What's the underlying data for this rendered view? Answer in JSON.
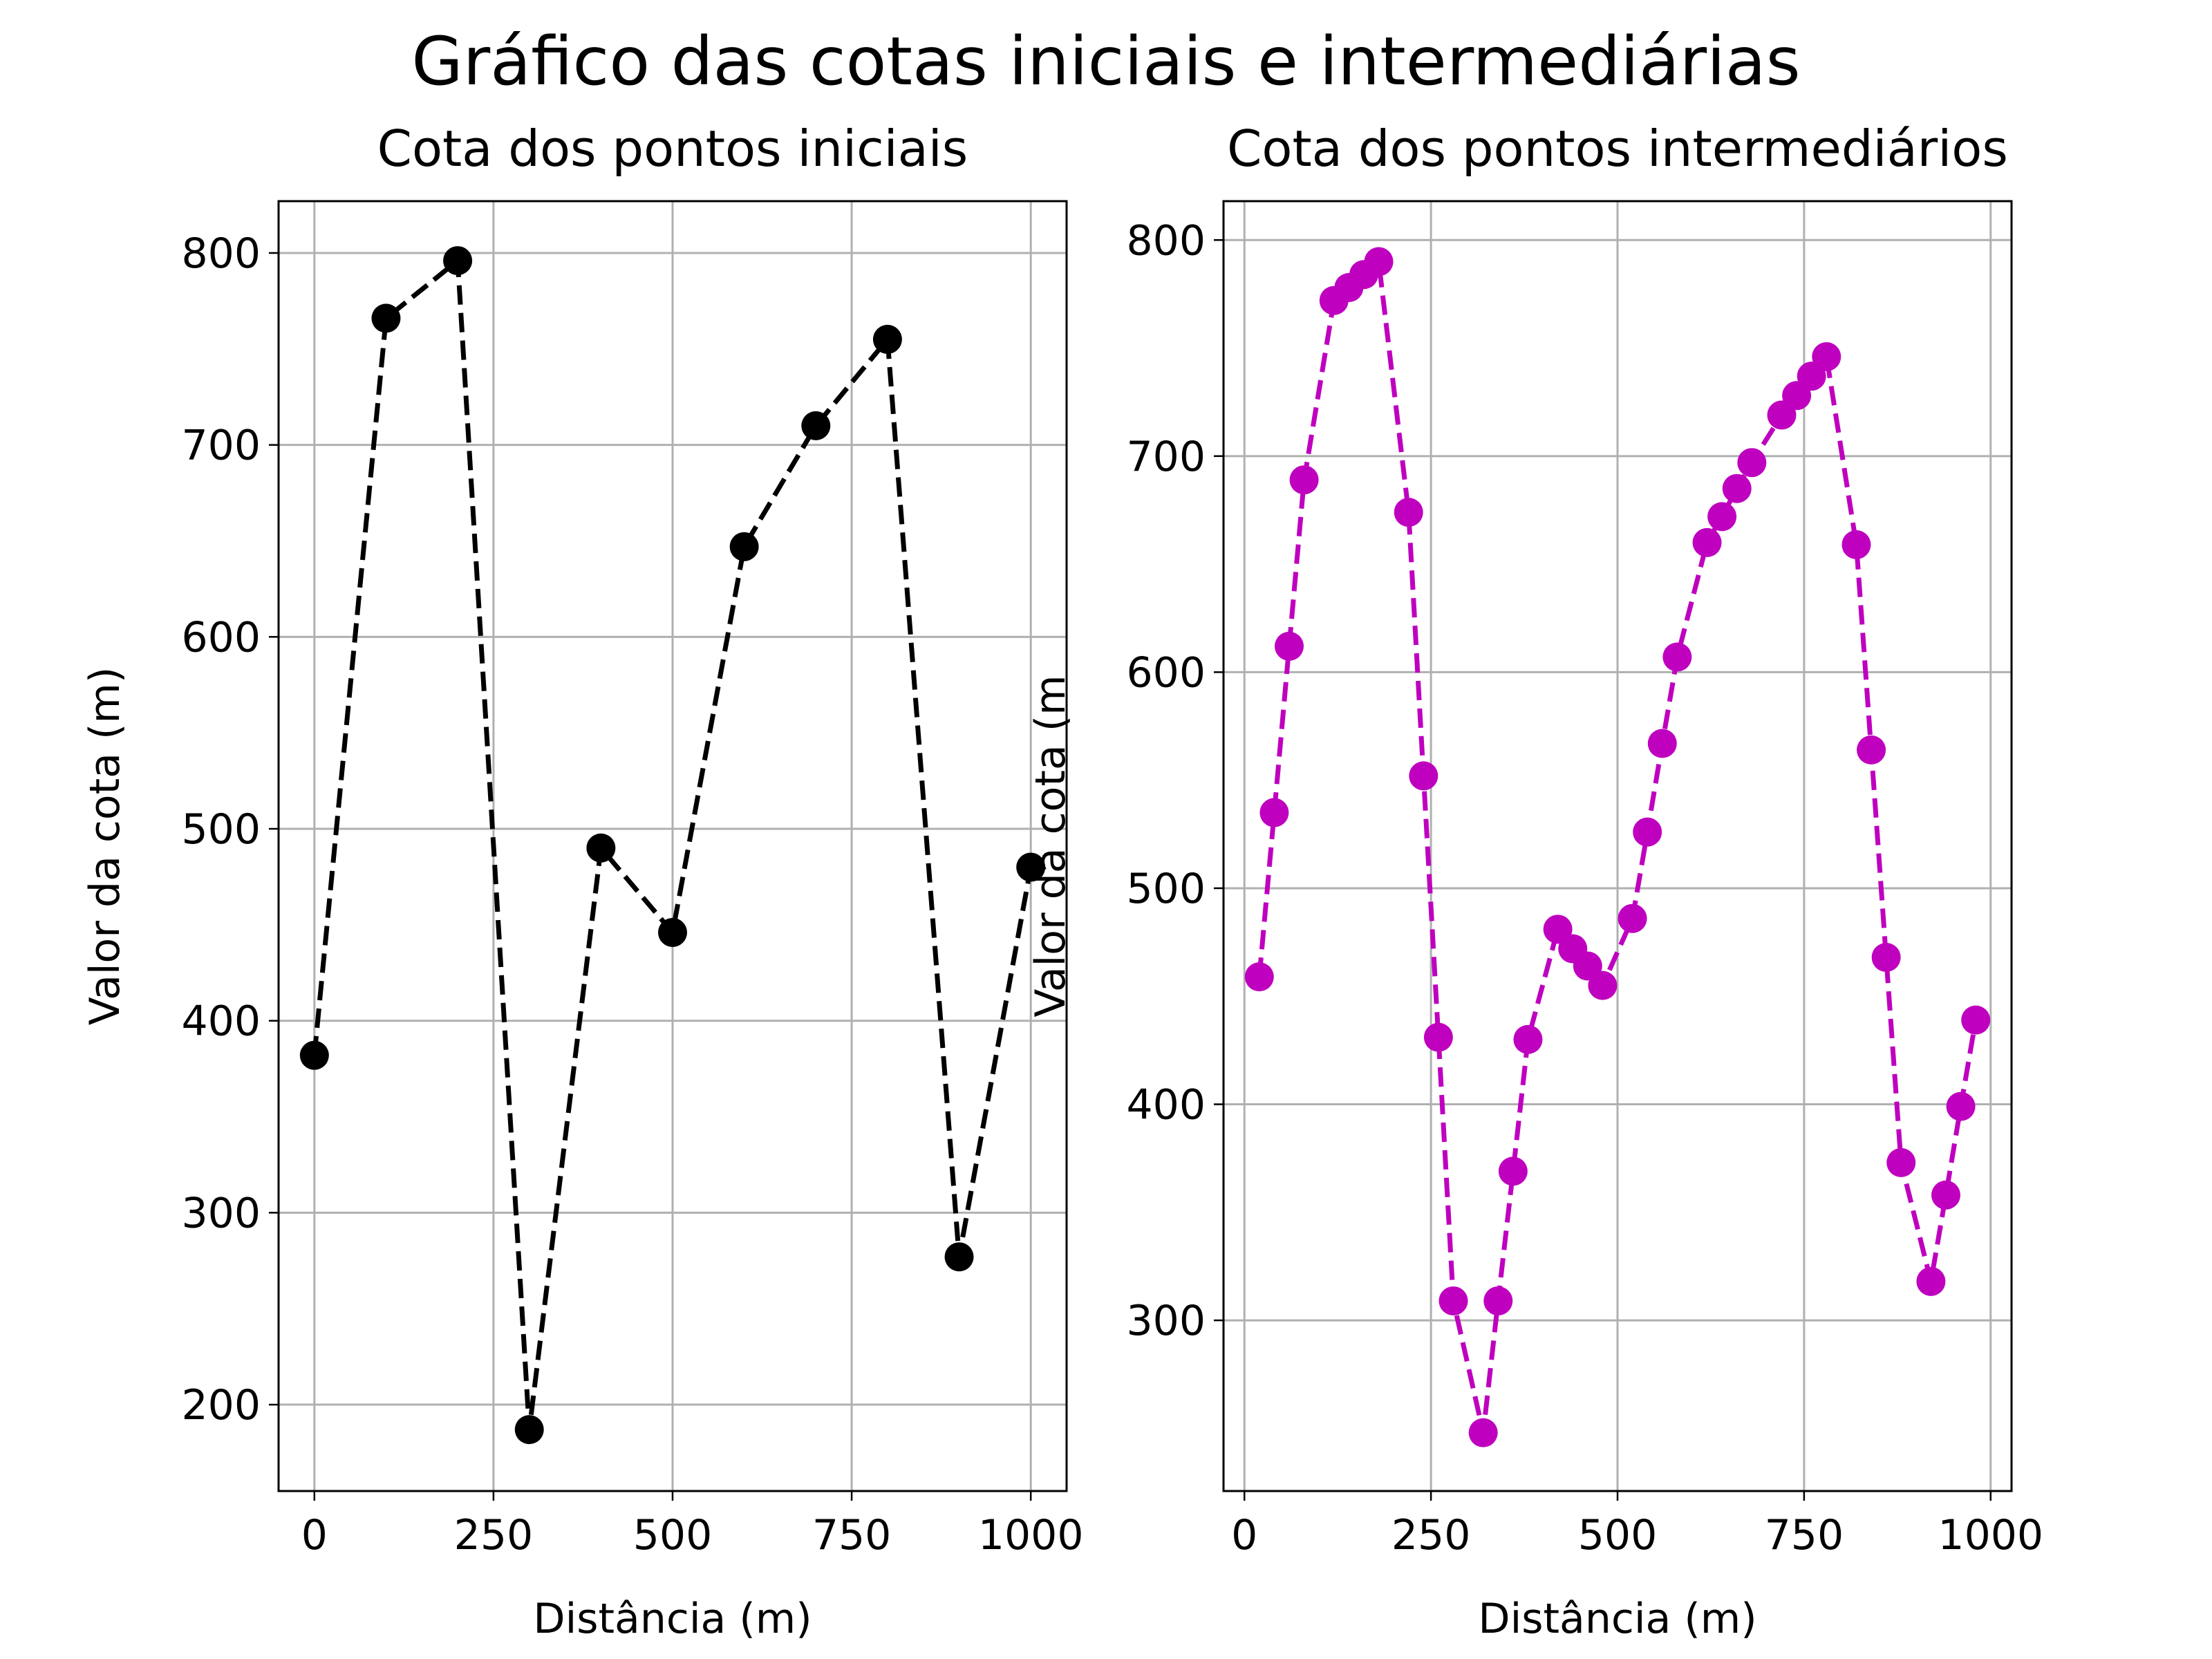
{
  "figure": {
    "title": "Gráfico das cotas iniciais e intermediárias"
  },
  "chart_data": [
    {
      "type": "line",
      "title": "Cota dos pontos iniciais",
      "xlabel": "Distância (m)",
      "ylabel": "Valor da cota (m)",
      "xlim": [
        -50,
        1050
      ],
      "ylim": [
        155,
        827
      ],
      "xticks": [
        0,
        250,
        500,
        750,
        1000
      ],
      "yticks": [
        200,
        300,
        400,
        500,
        600,
        700,
        800
      ],
      "grid": true,
      "line_style": "dashed",
      "marker": "circle",
      "color": "#000000",
      "series": [
        {
          "x": [
            0,
            100,
            200,
            300,
            400,
            500,
            600,
            700,
            800,
            900,
            1000
          ],
          "y": [
            382,
            766,
            796,
            187,
            490,
            446,
            647,
            710,
            755,
            277,
            480
          ]
        }
      ]
    },
    {
      "type": "line",
      "title": "Cota dos pontos intermediários",
      "xlabel": "Distância (m)",
      "ylabel": "Valor da cota (m",
      "xlim": [
        -28,
        1028
      ],
      "ylim": [
        221,
        818
      ],
      "xticks": [
        0,
        250,
        500,
        750,
        1000
      ],
      "yticks": [
        300,
        400,
        500,
        600,
        700,
        800
      ],
      "grid": true,
      "line_style": "dashed",
      "marker": "circle",
      "color": "#bf00bf",
      "series": [
        {
          "x": [
            20,
            40,
            60,
            80,
            120,
            140,
            160,
            180,
            220,
            240,
            260,
            280,
            320,
            340,
            360,
            380,
            420,
            440,
            460,
            480,
            520,
            540,
            560,
            580,
            620,
            640,
            660,
            680,
            720,
            740,
            760,
            780,
            820,
            840,
            860,
            880,
            920,
            940,
            960,
            980
          ],
          "y": [
            459,
            535,
            612,
            689,
            772,
            778,
            784,
            790,
            674,
            552,
            431,
            309,
            248,
            309,
            369,
            430,
            481,
            472,
            464,
            455,
            486,
            526,
            567,
            607,
            660,
            672,
            685,
            697,
            719,
            728,
            737,
            746,
            659,
            564,
            468,
            373,
            318,
            358,
            399,
            439
          ]
        }
      ]
    }
  ]
}
